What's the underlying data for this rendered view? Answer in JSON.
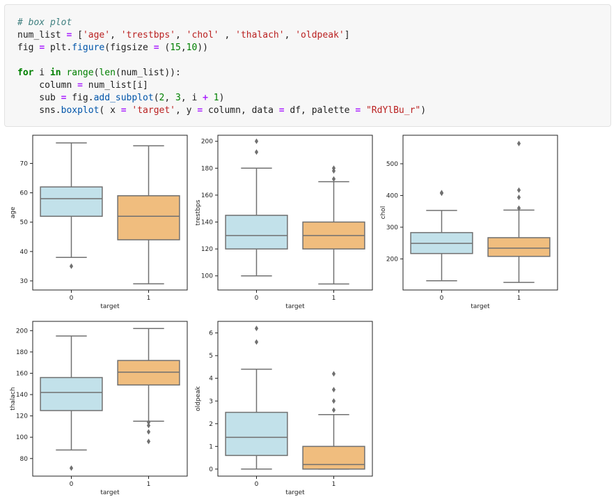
{
  "code_cell": {
    "lines": [
      [
        {
          "t": "# box plot",
          "c": "com"
        }
      ],
      [
        {
          "t": "num_list "
        },
        {
          "t": "=",
          "c": "op"
        },
        {
          "t": " ["
        },
        {
          "t": "'age'",
          "c": "str"
        },
        {
          "t": ", "
        },
        {
          "t": "'trestbps'",
          "c": "str"
        },
        {
          "t": ", "
        },
        {
          "t": "'chol'",
          "c": "str"
        },
        {
          "t": " , "
        },
        {
          "t": "'thalach'",
          "c": "str"
        },
        {
          "t": ", "
        },
        {
          "t": "'oldpeak'",
          "c": "str"
        },
        {
          "t": "]"
        }
      ],
      [
        {
          "t": "fig "
        },
        {
          "t": "=",
          "c": "op"
        },
        {
          "t": " plt."
        },
        {
          "t": "figure",
          "c": "fn"
        },
        {
          "t": "(figsize "
        },
        {
          "t": "=",
          "c": "op"
        },
        {
          "t": " ("
        },
        {
          "t": "15",
          "c": "num"
        },
        {
          "t": ","
        },
        {
          "t": "10",
          "c": "num"
        },
        {
          "t": "))"
        }
      ],
      [],
      [
        {
          "t": "for",
          "c": "kw"
        },
        {
          "t": " i "
        },
        {
          "t": "in",
          "c": "kw"
        },
        {
          "t": " "
        },
        {
          "t": "range",
          "c": "bi"
        },
        {
          "t": "("
        },
        {
          "t": "len",
          "c": "bi"
        },
        {
          "t": "(num_list)):"
        }
      ],
      [
        {
          "t": "    column "
        },
        {
          "t": "=",
          "c": "op"
        },
        {
          "t": " num_list[i]"
        }
      ],
      [
        {
          "t": "    sub "
        },
        {
          "t": "=",
          "c": "op"
        },
        {
          "t": " fig."
        },
        {
          "t": "add_subplot",
          "c": "fn"
        },
        {
          "t": "("
        },
        {
          "t": "2",
          "c": "num"
        },
        {
          "t": ", "
        },
        {
          "t": "3",
          "c": "num"
        },
        {
          "t": ", i "
        },
        {
          "t": "+",
          "c": "op"
        },
        {
          "t": " "
        },
        {
          "t": "1",
          "c": "num"
        },
        {
          "t": ")"
        }
      ],
      [
        {
          "t": "    sns."
        },
        {
          "t": "boxplot",
          "c": "fn"
        },
        {
          "t": "( x "
        },
        {
          "t": "=",
          "c": "op"
        },
        {
          "t": " "
        },
        {
          "t": "'target'",
          "c": "str"
        },
        {
          "t": ", y "
        },
        {
          "t": "=",
          "c": "op"
        },
        {
          "t": " column, data "
        },
        {
          "t": "=",
          "c": "op"
        },
        {
          "t": " df, palette "
        },
        {
          "t": "=",
          "c": "op"
        },
        {
          "t": " "
        },
        {
          "t": "\"RdYlBu_r\"",
          "c": "str"
        },
        {
          "t": ")"
        }
      ]
    ]
  },
  "colors": {
    "box_0": "#c2e1ea",
    "box_1": "#f0bd7e",
    "line": "#707070"
  },
  "chart_data": [
    {
      "type": "box",
      "title": "",
      "xlabel": "target",
      "ylabel": "age",
      "categories": [
        "0",
        "1"
      ],
      "ylim": [
        26.9,
        79.6
      ],
      "yticks": [
        30,
        40,
        50,
        60,
        70
      ],
      "boxes": [
        {
          "category": "0",
          "whislo": 38,
          "q1": 52,
          "median": 58,
          "q3": 62,
          "whishi": 77,
          "fliers": [
            35
          ]
        },
        {
          "category": "1",
          "whislo": 29,
          "q1": 44,
          "median": 52,
          "q3": 59,
          "whishi": 76,
          "fliers": []
        }
      ]
    },
    {
      "type": "box",
      "title": "",
      "xlabel": "target",
      "ylabel": "trestbps",
      "categories": [
        "0",
        "1"
      ],
      "ylim": [
        89.5,
        204.5
      ],
      "yticks": [
        100,
        120,
        140,
        160,
        180,
        200
      ],
      "boxes": [
        {
          "category": "0",
          "whislo": 100,
          "q1": 120,
          "median": 130,
          "q3": 145,
          "whishi": 180,
          "fliers": [
            192,
            200
          ]
        },
        {
          "category": "1",
          "whislo": 94,
          "q1": 120,
          "median": 130,
          "q3": 140,
          "whishi": 170,
          "fliers": [
            172,
            178,
            180
          ]
        }
      ]
    },
    {
      "type": "box",
      "title": "",
      "xlabel": "target",
      "ylabel": "chol",
      "categories": [
        "0",
        "1"
      ],
      "ylim": [
        102,
        590
      ],
      "yticks": [
        200,
        300,
        400,
        500
      ],
      "boxes": [
        {
          "category": "0",
          "whislo": 131,
          "q1": 217,
          "median": 249,
          "q3": 283,
          "whishi": 353,
          "fliers": [
            407,
            409
          ]
        },
        {
          "category": "1",
          "whislo": 126,
          "q1": 208,
          "median": 234,
          "q3": 267,
          "whishi": 354,
          "fliers": [
            360,
            394,
            417,
            564
          ]
        }
      ]
    },
    {
      "type": "box",
      "title": "",
      "xlabel": "target",
      "ylabel": "thalach",
      "categories": [
        "0",
        "1"
      ],
      "ylim": [
        63.5,
        208.7
      ],
      "yticks": [
        80,
        100,
        120,
        140,
        160,
        180,
        200
      ],
      "boxes": [
        {
          "category": "0",
          "whislo": 88,
          "q1": 125,
          "median": 142,
          "q3": 156,
          "whishi": 195,
          "fliers": [
            71
          ]
        },
        {
          "category": "1",
          "whislo": 115,
          "q1": 149,
          "median": 161,
          "q3": 172,
          "whishi": 202,
          "fliers": [
            96,
            105,
            111,
            114
          ]
        }
      ]
    },
    {
      "type": "box",
      "title": "",
      "xlabel": "target",
      "ylabel": "oldpeak",
      "categories": [
        "0",
        "1"
      ],
      "ylim": [
        -0.31,
        6.51
      ],
      "yticks": [
        0,
        1,
        2,
        3,
        4,
        5,
        6
      ],
      "boxes": [
        {
          "category": "0",
          "whislo": 0,
          "q1": 0.6,
          "median": 1.4,
          "q3": 2.5,
          "whishi": 4.4,
          "fliers": [
            5.6,
            6.2
          ]
        },
        {
          "category": "1",
          "whislo": 0,
          "q1": 0,
          "median": 0.2,
          "q3": 1.0,
          "whishi": 2.4,
          "fliers": [
            2.6,
            3.0,
            3.5,
            4.2
          ]
        }
      ]
    }
  ]
}
